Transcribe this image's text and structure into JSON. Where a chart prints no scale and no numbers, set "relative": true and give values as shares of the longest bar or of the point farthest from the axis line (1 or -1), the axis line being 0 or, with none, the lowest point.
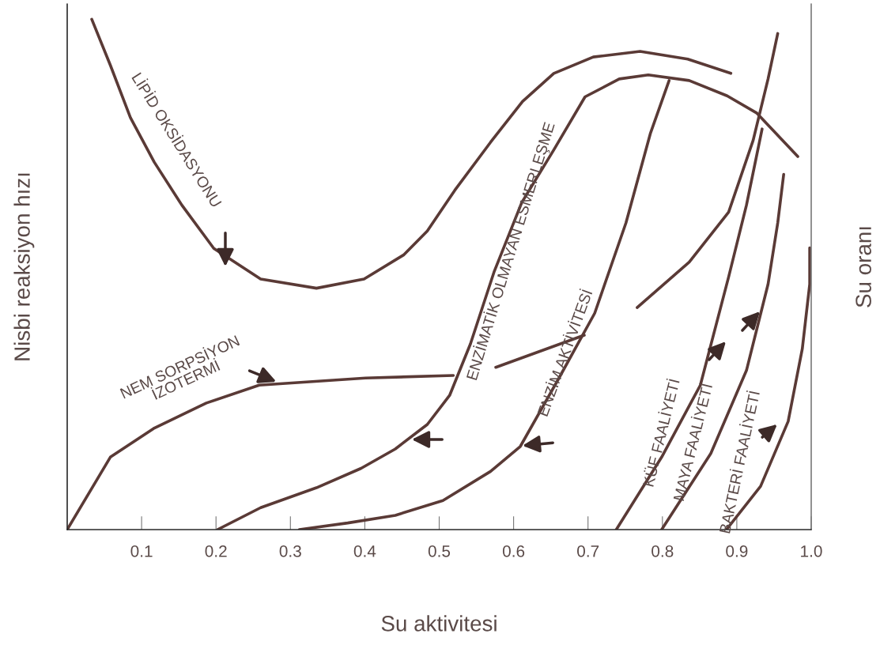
{
  "chart_data": {
    "type": "line",
    "relative": true,
    "xlabel": "Su aktivitesi",
    "ylabel": "Nisbi reaksiyon hızı",
    "y2label": "Su oranı",
    "xlim": [
      0,
      1
    ],
    "xticks": [
      0.1,
      0.2,
      0.3,
      0.4,
      0.5,
      0.6,
      0.7,
      0.8,
      0.9,
      {
        "value": 1.0,
        "label": "1.0"
      }
    ],
    "grid": false,
    "legend": false,
    "marker": "none",
    "line_style": "solid",
    "series": [
      {
        "color": "#5a3a36",
        "x": [
          0.033,
          0.058,
          0.085,
          0.117,
          0.154,
          0.197,
          0.26,
          0.335,
          0.399,
          0.452,
          0.484,
          0.521,
          0.569,
          0.612,
          0.654,
          0.707,
          0.77,
          0.834,
          0.892
        ],
        "values": [
          1.0,
          0.91,
          0.807,
          0.72,
          0.636,
          0.551,
          0.491,
          0.473,
          0.491,
          0.538,
          0.585,
          0.665,
          0.759,
          0.839,
          0.894,
          0.926,
          0.937,
          0.922,
          0.894
        ]
      },
      {
        "color": "#5a3a36",
        "x": [
          0.202,
          0.26,
          0.335,
          0.395,
          0.441,
          0.484,
          0.514,
          0.542,
          0.574,
          0.611,
          0.654,
          0.696,
          0.742,
          0.781,
          0.836,
          0.887,
          0.927,
          0.982
        ],
        "values": [
          0,
          0.043,
          0.082,
          0.12,
          0.158,
          0.206,
          0.263,
          0.364,
          0.506,
          0.641,
          0.744,
          0.848,
          0.883,
          0.891,
          0.88,
          0.85,
          0.816,
          0.731
        ]
      },
      {
        "color": "#5a3a36",
        "x": [
          0.312,
          0.377,
          0.441,
          0.505,
          0.569,
          0.609,
          0.661,
          0.709,
          0.751,
          0.784,
          0.809
        ],
        "values": [
          0,
          0.013,
          0.028,
          0.057,
          0.114,
          0.163,
          0.297,
          0.424,
          0.601,
          0.777,
          0.88
        ]
      },
      {
        "color": "#5a3a36",
        "x": [
          0,
          0.058,
          0.116,
          0.187,
          0.258,
          0.401,
          0.519,
          0.54,
          0.576,
          0.695,
          0.73,
          0.766,
          0.836,
          0.889,
          0.922,
          0.942,
          0.955
        ],
        "values": [
          0,
          0.142,
          0.198,
          0.248,
          0.283,
          0.297,
          0.302,
          null,
          0.318,
          0.381,
          null,
          0.435,
          0.524,
          0.622,
          0.763,
          0.883,
          0.972
        ]
      },
      {
        "color": "#5a3a36",
        "x": [
          0.738,
          0.799,
          0.851,
          0.889,
          0.913,
          0.934
        ],
        "values": [
          0,
          0.142,
          0.283,
          0.495,
          0.636,
          0.785
        ]
      },
      {
        "color": "#5a3a36",
        "x": [
          0.799,
          0.865,
          0.913,
          0.942,
          0.955,
          0.963
        ],
        "values": [
          0,
          0.149,
          0.312,
          0.481,
          0.601,
          0.696
        ]
      },
      {
        "color": "#5a3a36",
        "x": [
          0.886,
          0.932,
          0.969,
          0.988,
          0.998,
          0.998
        ],
        "values": [
          0,
          0.085,
          0.212,
          0.354,
          0.481,
          0.552
        ]
      }
    ],
    "annotations": [
      "LİPİD OKSİDASYONU",
      "NEM SORPSİYON\nİZOTERMİ",
      "ENZİMATİK OLMAYAN ESMERLEŞME",
      "ENZİM AKTİVİTESİ",
      "KÜF FAALİYETİ",
      "MAYA FAALİYETİ",
      "BAKTERİ FAALİYETİ"
    ]
  }
}
